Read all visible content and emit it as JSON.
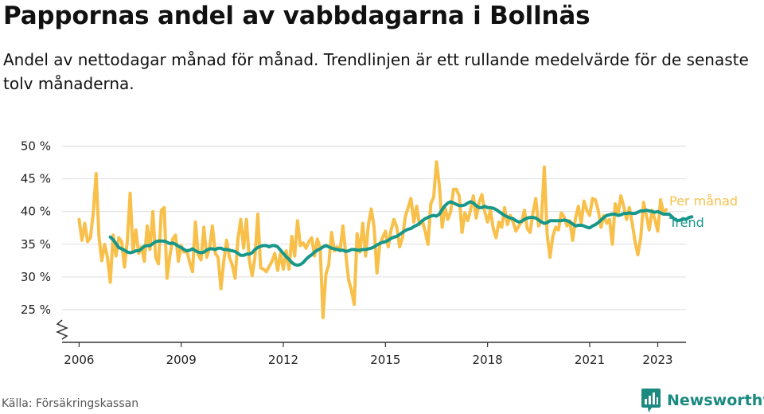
{
  "header": {
    "title": "Pappornas andel av vabbdagarna i Bollnäs",
    "subtitle": "Andel av nettodagar månad för månad. Trendlinjen är ett rullande medelvärde för de senaste tolv månaderna."
  },
  "footer": {
    "source": "Källa: Försäkringskassan",
    "brand": "Newsworthy",
    "brand_icon": "bar-chart-icon"
  },
  "colors": {
    "monthly": "#f8c04a",
    "trend": "#17978a",
    "grid": "#dddddd",
    "axis": "#333333",
    "brand": "#1a8a80"
  },
  "chart_data": {
    "type": "line",
    "title": "",
    "xlabel": "",
    "ylabel": "",
    "ylim": [
      20,
      50
    ],
    "yticks": [
      25,
      30,
      35,
      40,
      45,
      50
    ],
    "ytick_labels": [
      "25 %",
      "30 %",
      "35 %",
      "40 %",
      "45 %",
      "50 %"
    ],
    "y_axis_break": true,
    "xticks": [
      2006,
      2009,
      2012,
      2015,
      2018,
      2021,
      2023
    ],
    "xtick_labels": [
      "2006",
      "2009",
      "2012",
      "2015",
      "2018",
      "2021",
      "2023"
    ],
    "grid": true,
    "legend": "right-end labels",
    "series": [
      {
        "name": "Per månad",
        "start": "2006-01",
        "frequency": "monthly",
        "values": [
          38.8,
          35.6,
          38.2,
          35.4,
          36.0,
          39.8,
          45.8,
          36.2,
          32.5,
          35.0,
          33.0,
          29.2,
          36.4,
          33.2,
          36.0,
          35.4,
          31.5,
          35.5,
          42.8,
          33.8,
          37.2,
          33.6,
          34.6,
          32.4,
          37.8,
          34.2,
          40.0,
          33.0,
          32.0,
          40.2,
          40.6,
          29.8,
          33.2,
          35.8,
          36.4,
          32.4,
          34.8,
          33.8,
          34.0,
          32.2,
          30.8,
          38.4,
          33.4,
          32.6,
          37.6,
          33.0,
          34.4,
          37.8,
          33.6,
          33.0,
          28.2,
          32.4,
          35.6,
          33.0,
          31.8,
          29.8,
          35.8,
          38.8,
          34.4,
          38.8,
          32.6,
          30.2,
          33.0,
          39.6,
          31.4,
          31.2,
          30.8,
          31.6,
          32.4,
          33.6,
          31.0,
          33.6,
          31.2,
          34.0,
          31.2,
          36.2,
          33.2,
          38.6,
          34.8,
          35.2,
          34.4,
          35.4,
          36.0,
          33.2,
          35.8,
          34.4,
          23.8,
          30.4,
          31.8,
          36.8,
          34.0,
          34.6,
          34.0,
          37.8,
          33.6,
          29.6,
          28.0,
          25.8,
          36.6,
          33.8,
          38.2,
          33.2,
          38.0,
          40.4,
          37.6,
          30.6,
          35.0,
          36.0,
          37.0,
          34.6,
          37.2,
          38.8,
          37.6,
          34.6,
          36.0,
          39.2,
          40.6,
          42.0,
          38.4,
          40.8,
          38.0,
          38.6,
          37.0,
          35.0,
          41.2,
          42.2,
          47.6,
          44.0,
          37.6,
          40.6,
          38.8,
          40.0,
          43.4,
          43.4,
          42.4,
          36.8,
          39.8,
          38.6,
          40.2,
          42.4,
          39.0,
          41.4,
          42.6,
          40.0,
          38.4,
          40.2,
          37.4,
          36.0,
          38.4,
          37.6,
          40.6,
          38.0,
          39.4,
          38.4,
          37.0,
          37.8,
          38.4,
          40.2,
          37.4,
          36.8,
          39.8,
          42.0,
          37.8,
          38.8,
          46.8,
          36.6,
          33.0,
          36.2,
          37.6,
          37.2,
          39.8,
          39.2,
          37.8,
          38.6,
          35.6,
          39.0,
          40.8,
          38.2,
          41.6,
          40.2,
          39.4,
          42.0,
          41.8,
          40.2,
          37.6,
          39.4,
          38.2,
          38.8,
          35.0,
          41.2,
          39.6,
          42.4,
          40.8,
          38.8,
          40.6,
          38.2,
          35.4,
          33.4,
          36.0,
          41.4,
          39.4,
          37.2,
          40.2,
          38.8,
          37.0,
          41.8,
          39.8,
          40.3
        ]
      },
      {
        "name": "Trend",
        "start": "2006-12",
        "frequency": "monthly",
        "values": [
          36.1,
          35.7,
          35.1,
          34.5,
          34.3,
          34.1,
          33.8,
          33.7,
          33.8,
          34.0,
          34.0,
          34.3,
          34.7,
          34.8,
          34.8,
          35.1,
          35.4,
          35.5,
          35.5,
          35.5,
          35.3,
          35.1,
          35.2,
          35.0,
          34.7,
          34.5,
          34.2,
          34.0,
          34.1,
          34.3,
          34.0,
          33.8,
          33.7,
          33.8,
          34.1,
          34.3,
          34.3,
          34.2,
          34.4,
          34.4,
          34.2,
          34.2,
          34.1,
          34.0,
          33.9,
          33.6,
          33.3,
          33.3,
          33.5,
          33.5,
          33.7,
          34.2,
          34.5,
          34.7,
          34.8,
          34.8,
          34.6,
          34.8,
          34.8,
          34.6,
          34.1,
          33.6,
          33.1,
          32.7,
          32.2,
          31.9,
          31.8,
          31.9,
          32.2,
          32.7,
          33.1,
          33.4,
          33.8,
          34.1,
          34.3,
          34.6,
          34.8,
          34.6,
          34.4,
          34.3,
          34.2,
          34.1,
          34.1,
          33.9,
          34.0,
          34.2,
          34.2,
          34.1,
          34.1,
          34.2,
          34.2,
          34.3,
          34.4,
          34.6,
          34.9,
          35.1,
          35.3,
          35.4,
          35.6,
          35.9,
          36.1,
          36.2,
          36.5,
          36.8,
          37.1,
          37.3,
          37.4,
          37.7,
          37.9,
          38.2,
          38.6,
          38.9,
          39.1,
          39.3,
          39.4,
          39.3,
          39.6,
          40.3,
          40.9,
          41.3,
          41.5,
          41.3,
          41.1,
          40.9,
          40.9,
          41.0,
          41.3,
          41.5,
          41.3,
          40.9,
          40.6,
          40.6,
          40.8,
          40.6,
          40.6,
          40.5,
          40.3,
          40.0,
          39.7,
          39.4,
          39.2,
          39.0,
          38.9,
          38.6,
          38.4,
          38.5,
          38.8,
          39.0,
          39.1,
          39.1,
          39.0,
          38.7,
          38.4,
          38.2,
          38.3,
          38.6,
          38.6,
          38.6,
          38.6,
          38.6,
          38.7,
          38.6,
          38.4,
          38.1,
          37.8,
          37.9,
          37.9,
          37.8,
          37.6,
          37.5,
          37.8,
          38.0,
          38.3,
          38.7,
          39.1,
          39.4,
          39.5,
          39.6,
          39.6,
          39.4,
          39.5,
          39.7,
          39.7,
          39.8,
          39.7,
          39.7,
          39.9,
          40.1,
          40.1,
          40.2,
          40.1,
          40.0,
          39.9,
          40.0,
          39.8,
          39.6,
          39.6,
          39.6,
          39.2,
          38.8,
          38.6,
          38.7,
          38.9,
          38.8,
          39.1,
          39.2
        ]
      }
    ]
  }
}
